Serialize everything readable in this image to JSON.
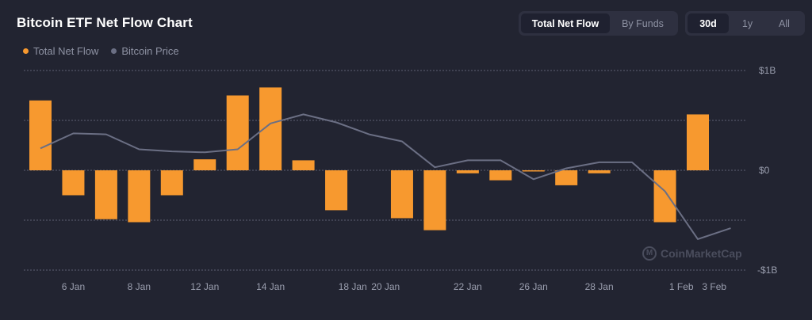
{
  "header": {
    "title": "Bitcoin ETF Net Flow Chart"
  },
  "view_toggle": [
    {
      "label": "Total Net Flow",
      "active": true
    },
    {
      "label": "By Funds",
      "active": false
    }
  ],
  "range_toggle": [
    {
      "label": "30d",
      "active": true
    },
    {
      "label": "1y",
      "active": false
    },
    {
      "label": "All",
      "active": false
    }
  ],
  "watermark": {
    "text": "CoinMarketCap",
    "icon": "coinmarketcap-logo-icon"
  },
  "colors": {
    "background": "#222431",
    "bar": "#f7992f",
    "line": "#6b6f84",
    "grid": "#5e6172"
  },
  "chart_data": {
    "type": "bar",
    "title": "Bitcoin ETF Net Flow Chart",
    "xlabel": "",
    "ylabel": "",
    "ylim": [
      -1,
      1
    ],
    "y_unit": "$B",
    "grid": true,
    "legend_position": "top-left",
    "yticks": [
      {
        "value": 1,
        "label": "$1B"
      },
      {
        "value": 0,
        "label": "$0"
      },
      {
        "value": -1,
        "label": "-$1B"
      }
    ],
    "gridlines": [
      1,
      0.5,
      0,
      -0.5,
      -1
    ],
    "xtick_labels": [
      {
        "index": 1,
        "label": "6 Jan"
      },
      {
        "index": 3,
        "label": "8 Jan"
      },
      {
        "index": 5,
        "label": "12 Jan"
      },
      {
        "index": 7,
        "label": "14 Jan"
      },
      {
        "index": 9.5,
        "label": "18 Jan"
      },
      {
        "index": 10.5,
        "label": "20 Jan"
      },
      {
        "index": 13,
        "label": "22 Jan"
      },
      {
        "index": 15,
        "label": "26 Jan"
      },
      {
        "index": 17,
        "label": "28 Jan"
      },
      {
        "index": 19.5,
        "label": "1 Feb"
      },
      {
        "index": 20.5,
        "label": "3 Feb"
      }
    ],
    "series": [
      {
        "name": "Total Net Flow",
        "type": "bar",
        "color": "#f7992f",
        "values": [
          0.7,
          -0.25,
          -0.49,
          -0.52,
          -0.25,
          0.11,
          0.75,
          0.83,
          0.1,
          -0.4,
          null,
          -0.48,
          -0.6,
          -0.03,
          -0.1,
          -0.01,
          -0.15,
          -0.03,
          null,
          -0.52,
          0.56,
          null
        ]
      },
      {
        "name": "Bitcoin Price",
        "type": "line",
        "color": "#6b6f84",
        "values": [
          0.22,
          0.37,
          0.36,
          0.21,
          0.19,
          0.18,
          0.21,
          0.47,
          0.56,
          0.48,
          0.36,
          0.29,
          0.03,
          0.1,
          0.1,
          -0.09,
          0.02,
          0.08,
          0.08,
          -0.21,
          -0.69,
          -0.58
        ]
      }
    ]
  }
}
